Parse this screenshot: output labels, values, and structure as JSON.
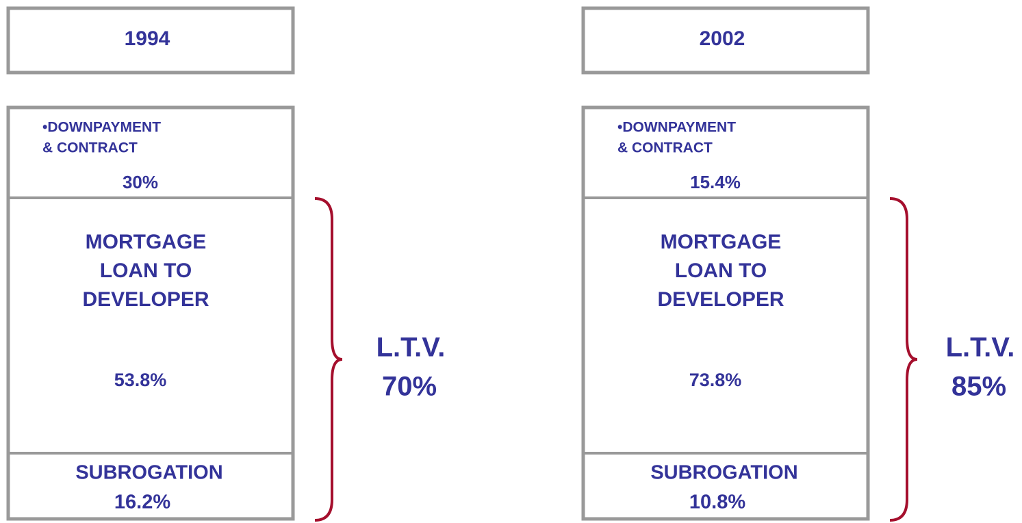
{
  "panels": [
    {
      "year": "1994",
      "downpayment": {
        "lines": [
          "•DOWNPAYMENT",
          "& CONTRACT"
        ],
        "value": "30%"
      },
      "mortgage": {
        "lines": [
          "MORTGAGE",
          "LOAN TO",
          "DEVELOPER"
        ],
        "value": "53.8%"
      },
      "subrogation": {
        "label": "SUBROGATION",
        "value": "16.2%"
      },
      "ltv": {
        "label": "L.T.V.",
        "value": "70%"
      }
    },
    {
      "year": "2002",
      "downpayment": {
        "lines": [
          "•DOWNPAYMENT",
          "& CONTRACT"
        ],
        "value": "15.4%"
      },
      "mortgage": {
        "lines": [
          "MORTGAGE",
          "LOAN TO",
          "DEVELOPER"
        ],
        "value": "73.8%"
      },
      "subrogation": {
        "label": "SUBROGATION",
        "value": "10.8%"
      },
      "ltv": {
        "label": "L.T.V.",
        "value": "85%"
      }
    }
  ]
}
